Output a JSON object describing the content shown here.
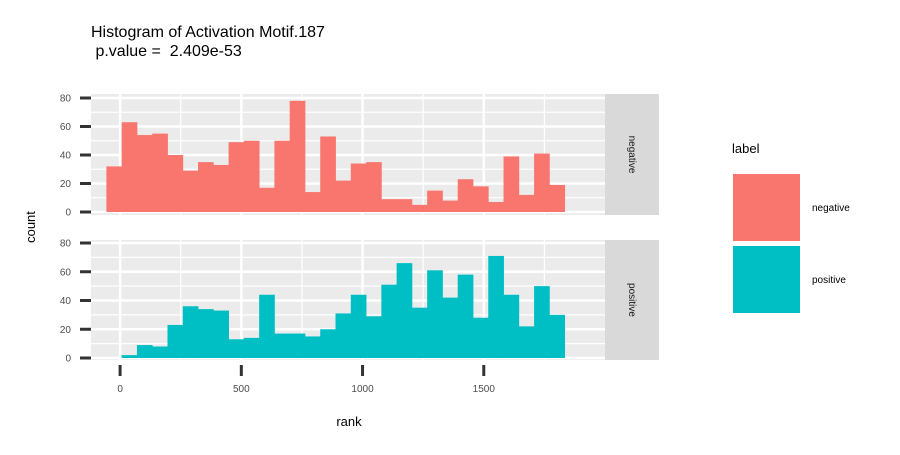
{
  "chart_data": {
    "type": "bar",
    "subtype": "faceted-histogram",
    "title": "Histogram of Activation Motif.187",
    "subtitle": " p.value =  2.409e-53",
    "xlabel": "rank",
    "ylabel": "count",
    "xlim": [
      -120,
      2000
    ],
    "ylim": [
      0,
      80
    ],
    "x_ticks": [
      0,
      500,
      1000,
      1500
    ],
    "x_tick_labels": [
      "0",
      "500",
      "1000",
      "1500"
    ],
    "y_ticks": [
      0,
      20,
      40,
      60,
      80
    ],
    "y_tick_labels": [
      "0",
      "20",
      "40",
      "60",
      "80"
    ],
    "grid": true,
    "bin_width": 63,
    "legend": {
      "title": "label",
      "position": "right",
      "entries": [
        {
          "name": "negative",
          "color": "#F8766D"
        },
        {
          "name": "positive",
          "color": "#00BFC4"
        }
      ]
    },
    "series": [
      {
        "name": "negative",
        "color": "#F8766D",
        "x": [
          -25,
          38,
          101,
          164,
          227,
          290,
          353,
          416,
          479,
          542,
          605,
          668,
          731,
          794,
          857,
          920,
          983,
          1046,
          1109,
          1172,
          1235,
          1298,
          1361,
          1424,
          1487,
          1550,
          1613,
          1676,
          1739,
          1802,
          1865
        ],
        "values": [
          32,
          63,
          54,
          55,
          40,
          29,
          35,
          33,
          49,
          50,
          17,
          50,
          78,
          14,
          53,
          22,
          34,
          35,
          9,
          9,
          5,
          15,
          8,
          23,
          18,
          7,
          39,
          12,
          41,
          19,
          0
        ]
      },
      {
        "name": "positive",
        "color": "#00BFC4",
        "x": [
          -25,
          38,
          101,
          164,
          227,
          290,
          353,
          416,
          479,
          542,
          605,
          668,
          731,
          794,
          857,
          920,
          983,
          1046,
          1109,
          1172,
          1235,
          1298,
          1361,
          1424,
          1487,
          1550,
          1613,
          1676,
          1739,
          1802,
          1865
        ],
        "values": [
          0,
          2,
          9,
          8,
          23,
          36,
          34,
          33,
          13,
          14,
          44,
          17,
          17,
          15,
          20,
          31,
          44,
          29,
          51,
          66,
          35,
          61,
          42,
          58,
          28,
          71,
          44,
          22,
          50,
          30,
          0
        ]
      }
    ]
  }
}
